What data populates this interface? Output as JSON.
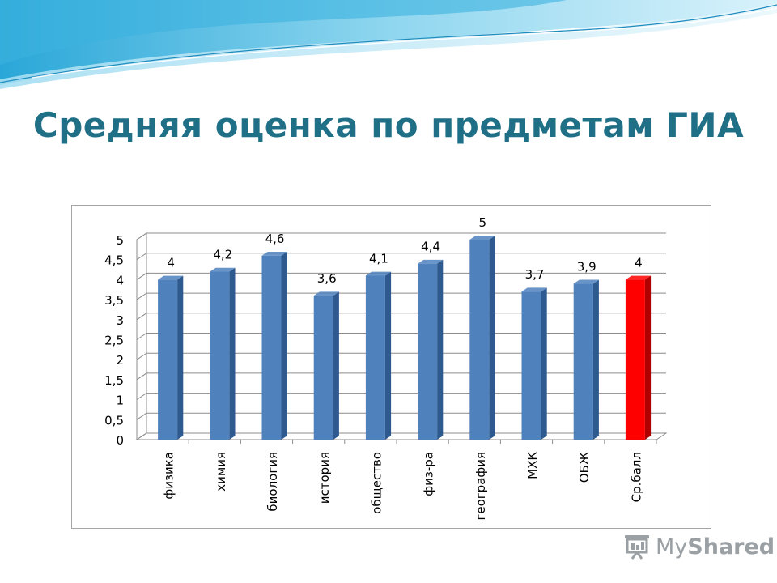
{
  "slide": {
    "title": "Средняя оценка по предметам ГИА",
    "watermark": {
      "my": "My",
      "shared": "Shared",
      "icon": "projector-screen-icon"
    }
  },
  "colors": {
    "bar": "#4f81bd",
    "bar_dark": "#2f5a8f",
    "highlight_bar": "#ff0000",
    "highlight_bar_dark": "#b00000",
    "title": "#1f6f86",
    "grid": "#8c8c8c"
  },
  "chart_data": {
    "type": "bar",
    "style": "3d-column",
    "title": "",
    "xlabel": "",
    "ylabel": "",
    "ylim": [
      0,
      5
    ],
    "y_ticks": [
      "0",
      "0,5",
      "1",
      "1,5",
      "2",
      "2,5",
      "3",
      "3,5",
      "4",
      "4,5",
      "5"
    ],
    "grid": true,
    "legend": "none",
    "categories": [
      "физика",
      "химия",
      "биология",
      "история",
      "общество",
      "физ-ра",
      "география",
      "МХК",
      "ОБЖ",
      "Ср.балл"
    ],
    "values": [
      4,
      4.2,
      4.6,
      3.6,
      4.1,
      4.4,
      5,
      3.7,
      3.9,
      4
    ],
    "value_labels": [
      "4",
      "4,2",
      "4,6",
      "3,6",
      "4,1",
      "4,4",
      "5",
      "3,7",
      "3,9",
      "4"
    ],
    "highlight_category": "Ср.балл"
  }
}
